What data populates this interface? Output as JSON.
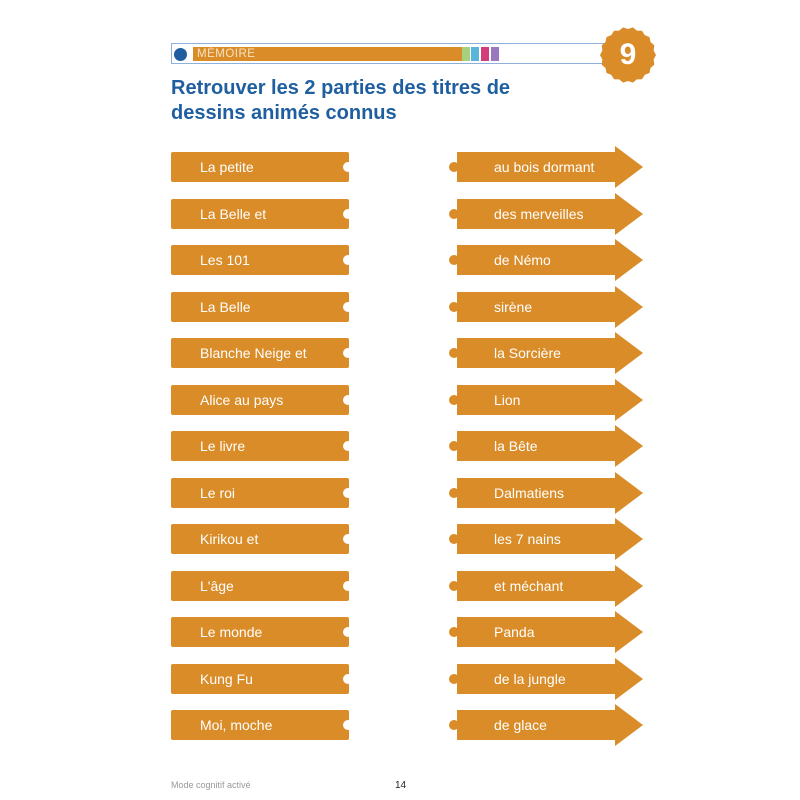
{
  "header": {
    "category": "MÉMOIRE",
    "colors": {
      "accent": "#d98c28",
      "title": "#1f5fa0",
      "squares": [
        "#a6cf7e",
        "#5ab6d8",
        "#d23c78",
        "#9a78c0"
      ]
    },
    "badge_number": "9"
  },
  "title": {
    "line1": "Retrouver les 2 parties des titres de",
    "line2": "dessins animés connus"
  },
  "left_items": [
    "La petite",
    "La Belle et",
    "Les 101",
    "La Belle",
    "Blanche Neige et",
    "Alice au pays",
    "Le livre",
    "Le roi",
    "Kirikou et",
    "L'âge",
    "Le monde",
    "Kung Fu",
    "Moi, moche"
  ],
  "right_items": [
    "au bois dormant",
    "des merveilles",
    "de Némo",
    "sirène",
    "la Sorcière",
    "Lion",
    "la Bête",
    "Dalmatiens",
    "les 7 nains",
    "et méchant",
    "Panda",
    "de la jungle",
    "de glace"
  ],
  "footer": {
    "left": "Mode cognitif activé",
    "page": "14"
  }
}
